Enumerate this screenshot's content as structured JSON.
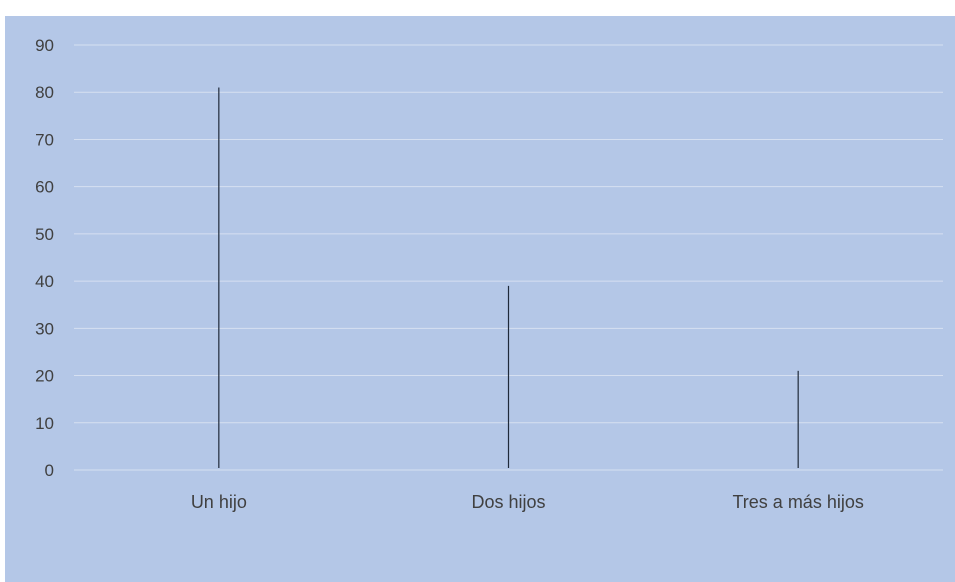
{
  "chart_data": {
    "type": "bar",
    "categories": [
      "Un hijo",
      "Dos hijos",
      "Tres a más hijos"
    ],
    "values": [
      81,
      39,
      21
    ],
    "ylim": [
      0,
      90
    ],
    "yticks": [
      0,
      10,
      20,
      30,
      40,
      50,
      60,
      70,
      80,
      90
    ],
    "title": "",
    "xlabel": "",
    "ylabel": "",
    "grid": true,
    "legend": "none"
  },
  "colors": {
    "background": "#b4c7e7",
    "gridline": "#d6e0f1",
    "bar": "#1f2a3a",
    "text": "#404040"
  }
}
